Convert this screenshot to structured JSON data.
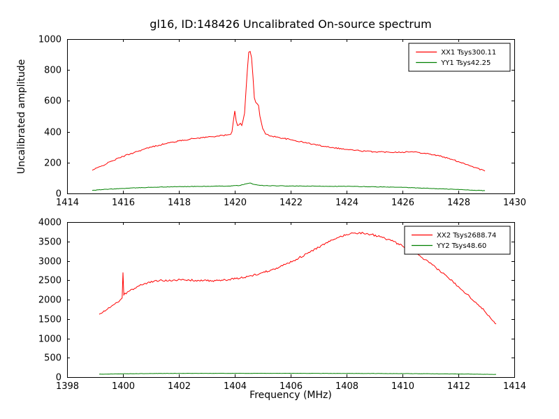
{
  "figure": {
    "title": "gl16, ID:148426 Uncalibrated On-source spectrum",
    "xlabel": "Frequency (MHz)",
    "ylabel": "Uncalibrated amplitude"
  },
  "chart_data": [
    {
      "type": "line",
      "subplot": "top",
      "xlim": [
        1414,
        1430
      ],
      "ylim": [
        0,
        1000
      ],
      "xticks": [
        1414,
        1416,
        1418,
        1420,
        1422,
        1424,
        1426,
        1428,
        1430
      ],
      "yticks": [
        0,
        200,
        400,
        600,
        800,
        1000
      ],
      "grid": false,
      "legend_position": "upper right",
      "legend": [
        "XX1 Tsys300.11",
        "YY1 Tsys42.25"
      ],
      "series": [
        {
          "name": "XX1 Tsys300.11",
          "color": "#ff0000",
          "noise": 4,
          "points": [
            [
              1414.9,
              150
            ],
            [
              1415.2,
              175
            ],
            [
              1415.6,
              210
            ],
            [
              1416.0,
              240
            ],
            [
              1416.5,
              272
            ],
            [
              1417.0,
              300
            ],
            [
              1417.5,
              322
            ],
            [
              1418.0,
              340
            ],
            [
              1418.5,
              355
            ],
            [
              1419.0,
              365
            ],
            [
              1419.4,
              372
            ],
            [
              1419.7,
              378
            ],
            [
              1419.85,
              382
            ],
            [
              1419.9,
              400
            ],
            [
              1419.95,
              470
            ],
            [
              1420.0,
              535
            ],
            [
              1420.05,
              470
            ],
            [
              1420.1,
              440
            ],
            [
              1420.2,
              455
            ],
            [
              1420.25,
              440
            ],
            [
              1420.35,
              520
            ],
            [
              1420.45,
              800
            ],
            [
              1420.5,
              915
            ],
            [
              1420.55,
              920
            ],
            [
              1420.6,
              880
            ],
            [
              1420.65,
              760
            ],
            [
              1420.7,
              620
            ],
            [
              1420.75,
              590
            ],
            [
              1420.85,
              570
            ],
            [
              1420.9,
              500
            ],
            [
              1421.0,
              420
            ],
            [
              1421.1,
              385
            ],
            [
              1421.3,
              372
            ],
            [
              1421.6,
              362
            ],
            [
              1422.0,
              348
            ],
            [
              1422.5,
              330
            ],
            [
              1423.0,
              312
            ],
            [
              1423.5,
              298
            ],
            [
              1424.0,
              285
            ],
            [
              1424.5,
              276
            ],
            [
              1425.0,
              270
            ],
            [
              1425.5,
              268
            ],
            [
              1426.0,
              268
            ],
            [
              1426.3,
              270
            ],
            [
              1426.6,
              266
            ],
            [
              1427.0,
              255
            ],
            [
              1427.4,
              240
            ],
            [
              1427.8,
              218
            ],
            [
              1428.2,
              195
            ],
            [
              1428.6,
              168
            ],
            [
              1428.95,
              145
            ]
          ]
        },
        {
          "name": "YY1 Tsys42.25",
          "color": "#008000",
          "noise": 1.5,
          "points": [
            [
              1414.9,
              20
            ],
            [
              1415.5,
              28
            ],
            [
              1416.2,
              34
            ],
            [
              1417.0,
              40
            ],
            [
              1418.0,
              44
            ],
            [
              1419.0,
              46
            ],
            [
              1419.8,
              48
            ],
            [
              1420.2,
              52
            ],
            [
              1420.4,
              62
            ],
            [
              1420.55,
              68
            ],
            [
              1420.7,
              58
            ],
            [
              1420.9,
              52
            ],
            [
              1421.2,
              50
            ],
            [
              1422.0,
              48
            ],
            [
              1423.0,
              47
            ],
            [
              1424.0,
              46
            ],
            [
              1425.0,
              43
            ],
            [
              1426.0,
              39
            ],
            [
              1426.8,
              34
            ],
            [
              1427.5,
              29
            ],
            [
              1428.2,
              24
            ],
            [
              1428.95,
              18
            ]
          ]
        }
      ]
    },
    {
      "type": "line",
      "subplot": "bottom",
      "xlim": [
        1398,
        1414
      ],
      "ylim": [
        0,
        4000
      ],
      "xticks": [
        1398,
        1400,
        1402,
        1404,
        1406,
        1408,
        1410,
        1412,
        1414
      ],
      "yticks": [
        0,
        500,
        1000,
        1500,
        2000,
        2500,
        3000,
        3500,
        4000
      ],
      "grid": false,
      "legend_position": "upper right",
      "legend": [
        "XX2 Tsys2688.74",
        "YY2 Tsys48.60"
      ],
      "series": [
        {
          "name": "XX2 Tsys2688.74",
          "color": "#ff0000",
          "noise": 25,
          "points": [
            [
              1399.15,
              1620
            ],
            [
              1399.4,
              1730
            ],
            [
              1399.7,
              1880
            ],
            [
              1399.9,
              1990
            ],
            [
              1399.97,
              2040
            ],
            [
              1400.0,
              2700
            ],
            [
              1400.03,
              2120
            ],
            [
              1400.2,
              2210
            ],
            [
              1400.5,
              2330
            ],
            [
              1400.8,
              2420
            ],
            [
              1401.1,
              2470
            ],
            [
              1401.4,
              2495
            ],
            [
              1401.8,
              2505
            ],
            [
              1402.2,
              2505
            ],
            [
              1402.6,
              2495
            ],
            [
              1403.0,
              2485
            ],
            [
              1403.4,
              2490
            ],
            [
              1403.8,
              2515
            ],
            [
              1404.2,
              2555
            ],
            [
              1404.6,
              2615
            ],
            [
              1405.0,
              2695
            ],
            [
              1405.4,
              2790
            ],
            [
              1405.8,
              2905
            ],
            [
              1406.2,
              3040
            ],
            [
              1406.6,
              3190
            ],
            [
              1407.0,
              3350
            ],
            [
              1407.4,
              3500
            ],
            [
              1407.7,
              3600
            ],
            [
              1408.0,
              3680
            ],
            [
              1408.3,
              3720
            ],
            [
              1408.6,
              3715
            ],
            [
              1408.9,
              3680
            ],
            [
              1409.2,
              3620
            ],
            [
              1409.6,
              3520
            ],
            [
              1410.0,
              3380
            ],
            [
              1410.4,
              3220
            ],
            [
              1410.8,
              3030
            ],
            [
              1411.2,
              2820
            ],
            [
              1411.6,
              2590
            ],
            [
              1412.0,
              2340
            ],
            [
              1412.4,
              2080
            ],
            [
              1412.8,
              1810
            ],
            [
              1413.1,
              1580
            ],
            [
              1413.35,
              1370
            ]
          ]
        },
        {
          "name": "YY2 Tsys48.60",
          "color": "#008000",
          "noise": 3,
          "points": [
            [
              1399.15,
              75
            ],
            [
              1400.0,
              85
            ],
            [
              1401.0,
              92
            ],
            [
              1402.0,
              96
            ],
            [
              1403.0,
              97
            ],
            [
              1404.0,
              97
            ],
            [
              1405.0,
              97
            ],
            [
              1406.0,
              97
            ],
            [
              1407.0,
              96
            ],
            [
              1408.0,
              95
            ],
            [
              1409.0,
              93
            ],
            [
              1410.0,
              90
            ],
            [
              1411.0,
              86
            ],
            [
              1412.0,
              81
            ],
            [
              1413.35,
              70
            ]
          ]
        }
      ]
    }
  ]
}
